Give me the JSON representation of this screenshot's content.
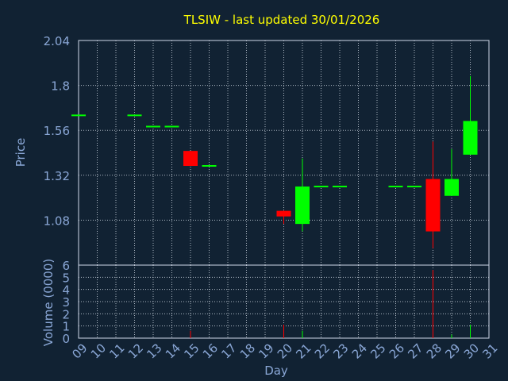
{
  "chart_data": {
    "type": "candlestick",
    "title": "TLSIW - last updated 30/01/2026",
    "xlabel": "Day",
    "ylabel": "Price",
    "volume_label": "Volume (0000)",
    "x_ticks": [
      "09",
      "10",
      "11",
      "12",
      "13",
      "14",
      "15",
      "16",
      "17",
      "18",
      "19",
      "20",
      "21",
      "22",
      "23",
      "24",
      "25",
      "26",
      "27",
      "28",
      "29",
      "30",
      "31"
    ],
    "price_ticks": [
      "2.04",
      "1.8",
      "1.56",
      "1.32",
      "1.08"
    ],
    "price_ylim": [
      0.84,
      2.04
    ],
    "volume_ticks": [
      "0",
      "1",
      "2",
      "3",
      "4",
      "5",
      "6"
    ],
    "volume_ylim": [
      0,
      6
    ],
    "grid": true,
    "up_color": "#00ff00",
    "down_color": "#ff0000",
    "candles": [
      {
        "day": 9,
        "open": 1.64,
        "close": 1.64,
        "high": 1.64,
        "low": 1.64,
        "volume": 0.0
      },
      {
        "day": 12,
        "open": 1.64,
        "close": 1.64,
        "high": 1.64,
        "low": 1.64,
        "volume": 0.0
      },
      {
        "day": 13,
        "open": 1.58,
        "close": 1.58,
        "high": 1.58,
        "low": 1.58,
        "volume": 0.0
      },
      {
        "day": 14,
        "open": 1.58,
        "close": 1.58,
        "high": 1.58,
        "low": 1.58,
        "volume": 0.0
      },
      {
        "day": 15,
        "open": 1.45,
        "close": 1.37,
        "high": 1.45,
        "low": 1.37,
        "volume": 0.6
      },
      {
        "day": 16,
        "open": 1.37,
        "close": 1.37,
        "high": 1.37,
        "low": 1.37,
        "volume": 0.0
      },
      {
        "day": 20,
        "open": 1.13,
        "close": 1.1,
        "high": 1.13,
        "low": 1.06,
        "volume": 1.1
      },
      {
        "day": 21,
        "open": 1.06,
        "close": 1.26,
        "high": 1.41,
        "low": 1.02,
        "volume": 0.6
      },
      {
        "day": 22,
        "open": 1.26,
        "close": 1.26,
        "high": 1.26,
        "low": 1.26,
        "volume": 0.0
      },
      {
        "day": 23,
        "open": 1.26,
        "close": 1.26,
        "high": 1.26,
        "low": 1.26,
        "volume": 0.0
      },
      {
        "day": 26,
        "open": 1.26,
        "close": 1.26,
        "high": 1.26,
        "low": 1.26,
        "volume": 0.0
      },
      {
        "day": 27,
        "open": 1.26,
        "close": 1.26,
        "high": 1.26,
        "low": 1.26,
        "volume": 0.0
      },
      {
        "day": 28,
        "open": 1.3,
        "close": 1.02,
        "high": 1.5,
        "low": 0.93,
        "volume": 5.6
      },
      {
        "day": 29,
        "open": 1.21,
        "close": 1.3,
        "high": 1.46,
        "low": 1.21,
        "volume": 0.3
      },
      {
        "day": 30,
        "open": 1.43,
        "close": 1.61,
        "high": 1.85,
        "low": 1.43,
        "volume": 1.1
      }
    ]
  }
}
